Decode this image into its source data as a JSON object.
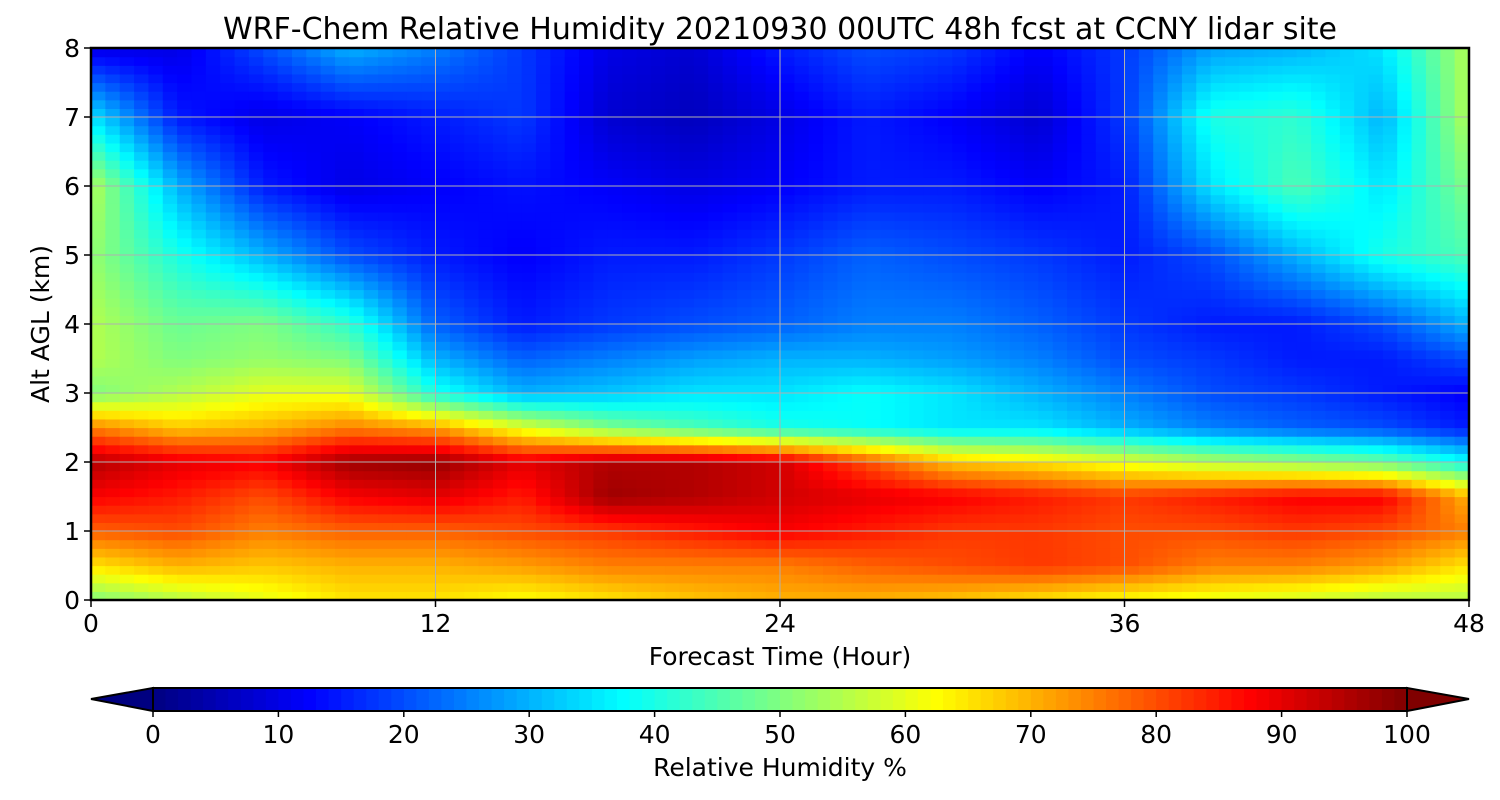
{
  "chart_data": [
    {
      "type": "heatmap",
      "title": "WRF-Chem Relative Humidity 20210930 00UTC 48h fcst at CCNY lidar site",
      "xlabel": "Forecast Time (Hour)",
      "ylabel": "Alt AGL (km)",
      "xlim": [
        0,
        48
      ],
      "ylim": [
        0,
        8
      ],
      "xticks": [
        0,
        12,
        24,
        36,
        48
      ],
      "yticks": [
        0,
        1,
        2,
        3,
        4,
        5,
        6,
        7,
        8
      ],
      "grid": true,
      "colormap": "jet",
      "x": [
        0,
        3,
        6,
        9,
        12,
        15,
        18,
        21,
        24,
        27,
        30,
        33,
        36,
        39,
        42,
        45,
        48
      ],
      "y": [
        0,
        0.5,
        1,
        1.5,
        2,
        2.5,
        3,
        3.5,
        4,
        5,
        6,
        7,
        8
      ],
      "z": [
        [
          50,
          55,
          60,
          65,
          65,
          62,
          65,
          68,
          70,
          70,
          68,
          65,
          62,
          60,
          58,
          55,
          55
        ],
        [
          65,
          70,
          68,
          70,
          70,
          72,
          75,
          75,
          75,
          78,
          80,
          82,
          80,
          75,
          75,
          72,
          65
        ],
        [
          78,
          80,
          75,
          78,
          78,
          80,
          82,
          85,
          88,
          85,
          82,
          82,
          80,
          80,
          82,
          80,
          75
        ],
        [
          88,
          85,
          80,
          88,
          90,
          85,
          97,
          95,
          92,
          90,
          88,
          85,
          82,
          85,
          88,
          88,
          70
        ],
        [
          95,
          90,
          88,
          97,
          98,
          90,
          95,
          95,
          92,
          80,
          68,
          65,
          60,
          55,
          52,
          48,
          38
        ],
        [
          75,
          68,
          70,
          75,
          72,
          60,
          50,
          45,
          40,
          38,
          35,
          35,
          30,
          25,
          22,
          20,
          15
        ],
        [
          50,
          55,
          60,
          60,
          40,
          30,
          32,
          35,
          35,
          38,
          35,
          30,
          25,
          20,
          18,
          15,
          12
        ],
        [
          55,
          50,
          52,
          50,
          30,
          22,
          25,
          28,
          30,
          30,
          28,
          25,
          20,
          18,
          15,
          15,
          20
        ],
        [
          55,
          48,
          50,
          42,
          22,
          15,
          18,
          20,
          22,
          25,
          25,
          22,
          18,
          15,
          15,
          20,
          30
        ],
        [
          52,
          40,
          30,
          20,
          15,
          12,
          15,
          15,
          18,
          22,
          20,
          18,
          15,
          20,
          30,
          40,
          45
        ],
        [
          55,
          30,
          15,
          10,
          12,
          14,
          12,
          10,
          12,
          15,
          15,
          12,
          15,
          35,
          45,
          35,
          50
        ],
        [
          35,
          15,
          10,
          12,
          15,
          18,
          8,
          6,
          10,
          15,
          12,
          8,
          18,
          40,
          42,
          30,
          55
        ],
        [
          10,
          10,
          20,
          30,
          25,
          18,
          10,
          8,
          15,
          20,
          18,
          12,
          18,
          28,
          30,
          35,
          55
        ]
      ],
      "colorbar": {
        "label": "Relative Humidity %",
        "min": 0,
        "max": 100,
        "ticks": [
          0,
          10,
          20,
          30,
          40,
          50,
          60,
          70,
          80,
          90,
          100
        ],
        "extend": "both"
      }
    }
  ]
}
